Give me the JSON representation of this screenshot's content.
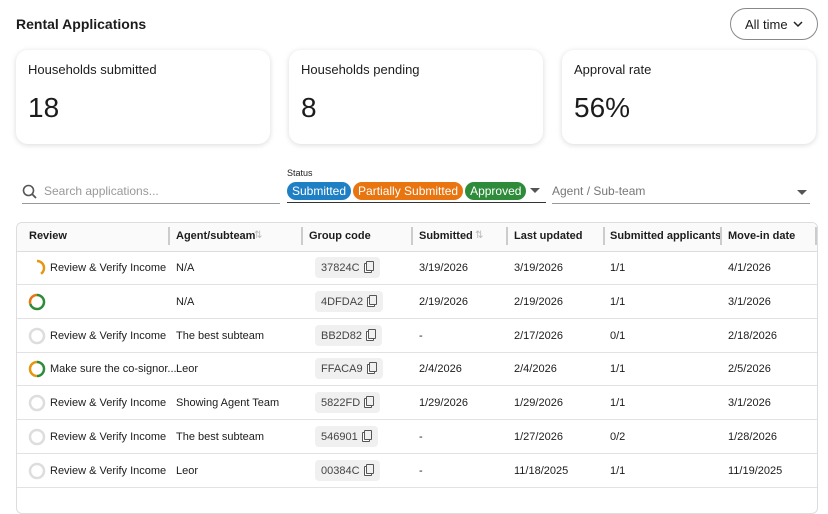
{
  "header": {
    "title": "Rental Applications",
    "filter": "All time"
  },
  "cards": [
    {
      "label": "Households submitted",
      "value": "18"
    },
    {
      "label": "Households pending",
      "value": "8"
    },
    {
      "label": "Approval rate",
      "value": "56%"
    }
  ],
  "filters": {
    "search": "Search applications...",
    "status_label": "Status",
    "chips": [
      {
        "label": "Submitted",
        "color": "#1f7fc4"
      },
      {
        "label": "Partially Submitted",
        "color": "#e8750f"
      },
      {
        "label": "Approved",
        "color": "#2e8b3a"
      }
    ],
    "agent": "Agent / Sub-team"
  },
  "table": {
    "columns": [
      "Review",
      "Agent/subteam",
      "Group code",
      "Submitted",
      "Last updated",
      "Submitted applicants",
      "Move-in date"
    ],
    "rows": [
      [
        "Review & Verify Income",
        "N/A",
        "37824C",
        "3/19/2026",
        "3/19/2026",
        "1/1",
        "4/1/2026"
      ],
      [
        null,
        "N/A",
        "4DFDA2",
        "2/19/2026",
        "2/19/2026",
        "1/1",
        "3/1/2026"
      ],
      [
        "Review & Verify Income",
        "The best subteam",
        "BB2D82",
        "-",
        "2/17/2026",
        "0/1",
        "2/18/2026"
      ],
      [
        "Make sure the co-signor...",
        "Leor",
        "FFACA9",
        "2/4/2026",
        "2/4/2026",
        "1/1",
        "2/5/2026"
      ],
      [
        "Review & Verify Income",
        "Showing Agent Team",
        "5822FD",
        "1/29/2026",
        "1/29/2026",
        "1/1",
        "3/1/2026"
      ],
      [
        "Review & Verify Income",
        "The best subteam",
        "546901",
        "-",
        "1/27/2026",
        "0/2",
        "1/28/2026"
      ],
      [
        "Review & Verify Income",
        "Leor",
        "00384C",
        "-",
        "11/18/2025",
        "1/1",
        "11/19/2025"
      ]
    ]
  }
}
